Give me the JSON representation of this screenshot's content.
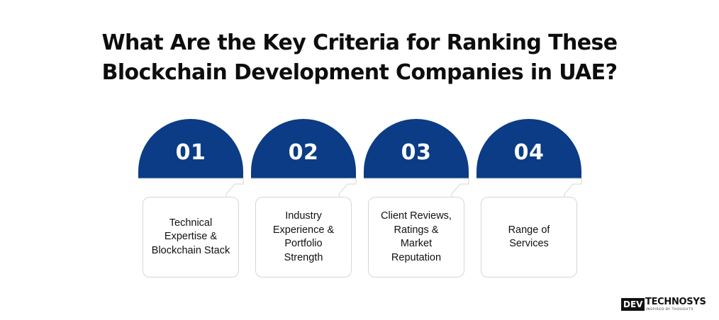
{
  "title": {
    "line1": "What Are the Key Criteria for Ranking These",
    "line2": "Blockchain Development Companies in UAE?"
  },
  "colors": {
    "accent": "#0b3c85",
    "card_border": "#d6d6d6",
    "text": "#111111"
  },
  "steps": [
    {
      "number": "01",
      "label": "Technical\nExpertise &\nBlockchain Stack"
    },
    {
      "number": "02",
      "label": "Industry\nExperience &\nPortfolio\nStrength"
    },
    {
      "number": "03",
      "label": "Client Reviews,\nRatings &\nMarket\nReputation"
    },
    {
      "number": "04",
      "label": "Range of\nServices"
    }
  ],
  "logo": {
    "badge": "DEV",
    "wordmark": "TECHNOSYS",
    "tagline": "INSPIRED BY THOUGHTS"
  }
}
